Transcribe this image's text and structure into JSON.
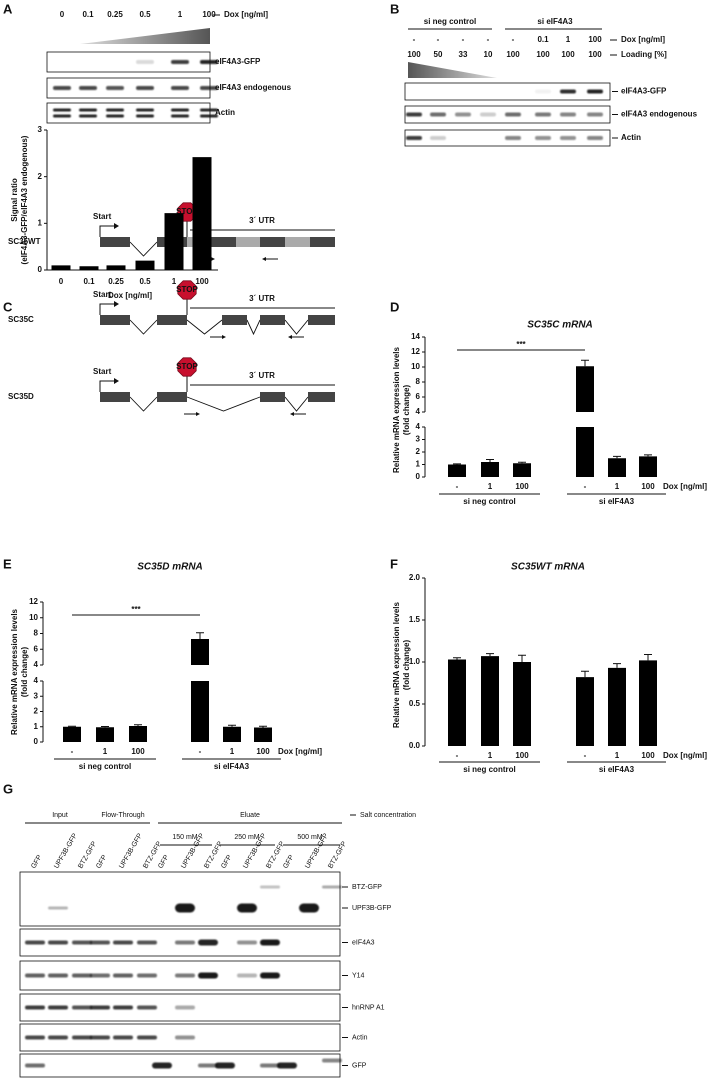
{
  "panels": {
    "A": {
      "label": "A",
      "dox": [
        "0",
        "0.1",
        "0.25",
        "0.5",
        "1",
        "100"
      ],
      "dox_unit": "Dox [ng/ml]",
      "blots": [
        "eIF4A3-GFP",
        "eIF4A3 endogenous",
        "Actin"
      ]
    },
    "B": {
      "label": "B",
      "groups": [
        "si neg control",
        "si eIF4A3"
      ],
      "dox": [
        "-",
        "-",
        "-",
        "-",
        "-",
        "0.1",
        "1",
        "100"
      ],
      "dox_unit": "Dox [ng/ml]",
      "loading": [
        "100",
        "50",
        "33",
        "10",
        "100",
        "100",
        "100",
        "100"
      ],
      "loading_unit": "Loading [%]",
      "blots": [
        "eIF4A3-GFP",
        "eIF4A3 endogenous",
        "Actin"
      ]
    },
    "C": {
      "label": "C",
      "start": "Start",
      "stop": "STOP",
      "utr": "3´ UTR",
      "constructs": [
        "SC35WT",
        "SC35C",
        "SC35D"
      ]
    },
    "D": {
      "label": "D"
    },
    "E": {
      "label": "E"
    },
    "F": {
      "label": "F"
    },
    "G": {
      "label": "G",
      "fractions": [
        "Input",
        "Flow-Through",
        "Eluate"
      ],
      "salts": [
        "150 mM",
        "250 mM",
        "500 mM"
      ],
      "salt_label": "Salt concentration",
      "lanes": [
        "GFP",
        "UPF3B-GFP",
        "BTZ-GFP",
        "GFP",
        "UPF3B-GFP",
        "BTZ-GFP",
        "GFP",
        "UPF3B-GFP",
        "BTZ-GFP",
        "GFP",
        "UPF3B-GFP",
        "BTZ-GFP",
        "GFP",
        "UPF3B-GFP",
        "BTZ-GFP"
      ],
      "blots": [
        "BTZ-GFP",
        "UPF3B-GFP",
        "eIF4A3",
        "Y14",
        "hnRNP A1",
        "Actin",
        "GFP"
      ]
    }
  },
  "chart_data": [
    {
      "type": "bar",
      "y_label": [
        "Signal ratio",
        "(eIF4A3-GFP/eIF4A3 endogenous)"
      ],
      "x_label": "Dox [ng/ml]",
      "categories": [
        "0",
        "0.1",
        "0.25",
        "0.5",
        "1",
        "100"
      ],
      "values": [
        0.1,
        0.08,
        0.1,
        0.2,
        1.22,
        2.42
      ],
      "ylim": [
        0,
        3
      ],
      "yticks": [
        0,
        1,
        2,
        3
      ],
      "color": "#000000"
    },
    {
      "type": "bar",
      "title": "SC35C mRNA",
      "y_label": [
        "Relative mRNA expression levels",
        "(fold change)"
      ],
      "categories": [
        "-",
        "1",
        "100",
        "-",
        "1",
        "100"
      ],
      "groups": [
        "si neg control",
        "si eIF4A3"
      ],
      "x_label": "Dox [ng/ml]",
      "values": [
        1.0,
        1.2,
        1.1,
        10.1,
        1.5,
        1.65
      ],
      "errors": [
        0.05,
        0.2,
        0.08,
        0.8,
        0.15,
        0.12
      ],
      "axis_segments": [
        {
          "ylim": [
            0,
            4
          ],
          "yticks": [
            0,
            1,
            2,
            3,
            4
          ]
        },
        {
          "ylim": [
            4,
            14
          ],
          "yticks": [
            4,
            6,
            8,
            10,
            12,
            14
          ]
        }
      ],
      "significance": {
        "label": "***",
        "between": [
          0,
          3
        ]
      },
      "color": "#000000"
    },
    {
      "type": "bar",
      "title": "SC35D mRNA",
      "y_label": [
        "Relative mRNA expression levels",
        "(fold change)"
      ],
      "categories": [
        "-",
        "1",
        "100",
        "-",
        "1",
        "100"
      ],
      "groups": [
        "si neg control",
        "si eIF4A3"
      ],
      "x_label": "Dox [ng/ml]",
      "values": [
        1.0,
        0.97,
        1.05,
        7.3,
        1.0,
        0.95
      ],
      "errors": [
        0.03,
        0.05,
        0.08,
        0.8,
        0.1,
        0.08
      ],
      "axis_segments": [
        {
          "ylim": [
            0,
            4
          ],
          "yticks": [
            0,
            1,
            2,
            3,
            4
          ]
        },
        {
          "ylim": [
            4,
            12
          ],
          "yticks": [
            4,
            6,
            8,
            10,
            12
          ]
        }
      ],
      "significance": {
        "label": "***",
        "between": [
          0,
          3
        ]
      },
      "color": "#000000"
    },
    {
      "type": "bar",
      "title": "SC35WT mRNA",
      "y_label": [
        "Relative mRNA expression levels",
        "(fold change)"
      ],
      "categories": [
        "-",
        "1",
        "100",
        "-",
        "1",
        "100"
      ],
      "groups": [
        "si neg control",
        "si eIF4A3"
      ],
      "x_label": "Dox [ng/ml]",
      "values": [
        1.03,
        1.07,
        1.0,
        0.82,
        0.93,
        1.02
      ],
      "errors": [
        0.02,
        0.03,
        0.08,
        0.07,
        0.05,
        0.07
      ],
      "ylim": [
        0,
        2
      ],
      "yticks": [
        {
          "value": 0,
          "label": "0.0"
        },
        {
          "value": 0.5,
          "label": "0.5"
        },
        {
          "value": 1,
          "label": "1.0"
        },
        {
          "value": 1.5,
          "label": "1.5"
        },
        {
          "value": 2,
          "label": "2.0"
        }
      ],
      "color": "#000000"
    }
  ]
}
